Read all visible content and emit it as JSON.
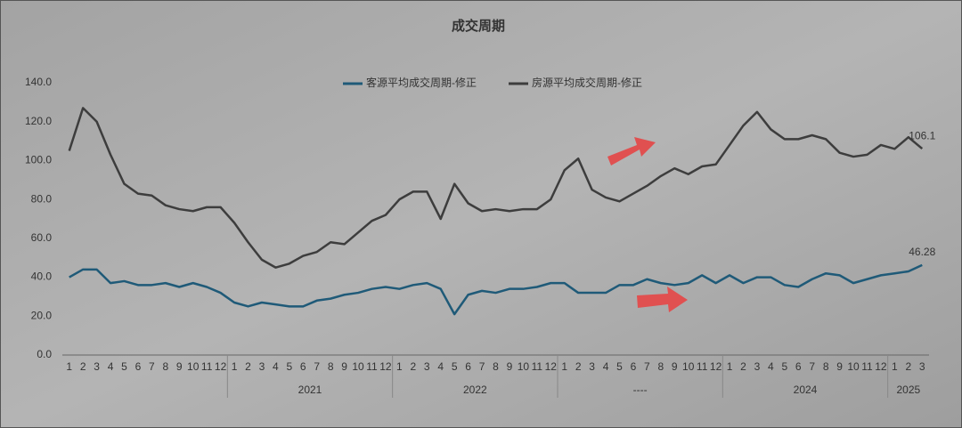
{
  "chart_data": {
    "type": "line",
    "title": "成交周期",
    "categories": [
      "1",
      "2",
      "3",
      "4",
      "5",
      "6",
      "7",
      "8",
      "9",
      "10",
      "11",
      "12",
      "1",
      "2",
      "3",
      "4",
      "5",
      "6",
      "7",
      "8",
      "9",
      "10",
      "11",
      "12",
      "1",
      "2",
      "3",
      "4",
      "5",
      "6",
      "7",
      "8",
      "9",
      "10",
      "11",
      "12",
      "1",
      "2",
      "3",
      "4",
      "5",
      "6",
      "7",
      "8",
      "9",
      "10",
      "11",
      "12",
      "1",
      "2",
      "3",
      "4",
      "5",
      "6",
      "7",
      "8",
      "9",
      "10",
      "11",
      "12",
      "1",
      "2",
      "3"
    ],
    "category_groups": [
      null,
      "2021",
      "2022",
      "----",
      "2024",
      "2025"
    ],
    "series": [
      {
        "name": "客源平均成交周期-修正",
        "color": "#1f5a78",
        "values": [
          40,
          44,
          44,
          37,
          38,
          36,
          36,
          37,
          35,
          37,
          35,
          32,
          27,
          25,
          27,
          26,
          25,
          25,
          28,
          29,
          31,
          32,
          34,
          35,
          34,
          36,
          37,
          34,
          21,
          31,
          33,
          32,
          34,
          34,
          35,
          37,
          37,
          32,
          32,
          32,
          36,
          36,
          39,
          37,
          36,
          37,
          41,
          37,
          41,
          37,
          40,
          40,
          36,
          35,
          39,
          42,
          41,
          37,
          39,
          41,
          42,
          43,
          46.28
        ],
        "value_labels": [
          null,
          null,
          null,
          null,
          null,
          null,
          null,
          null,
          null,
          null,
          null,
          null,
          null,
          null,
          null,
          null,
          null,
          null,
          null,
          null,
          null,
          null,
          null,
          null,
          null,
          null,
          null,
          null,
          null,
          null,
          null,
          null,
          null,
          null,
          null,
          null,
          null,
          null,
          null,
          null,
          null,
          null,
          null,
          null,
          null,
          null,
          null,
          null,
          null,
          null,
          null,
          null,
          null,
          null,
          null,
          null,
          null,
          null,
          null,
          null,
          null,
          null,
          "46.28"
        ]
      },
      {
        "name": "房源平均成交周期-修正",
        "color": "#3d3d3d",
        "values": [
          105,
          127,
          120,
          103,
          88,
          83,
          82,
          77,
          75,
          74,
          76,
          76,
          68,
          58,
          49,
          45,
          47,
          51,
          53,
          58,
          57,
          63,
          69,
          72,
          80,
          84,
          84,
          70,
          88,
          78,
          74,
          75,
          74,
          75,
          75,
          80,
          95,
          101,
          85,
          81,
          79,
          83,
          87,
          92,
          96,
          93,
          97,
          98,
          108,
          118,
          125,
          116,
          111,
          111,
          113,
          111,
          104,
          102,
          103,
          108,
          106,
          112,
          106.1
        ],
        "value_labels": [
          null,
          null,
          null,
          null,
          null,
          null,
          null,
          null,
          null,
          null,
          null,
          null,
          null,
          null,
          null,
          null,
          null,
          null,
          null,
          null,
          null,
          null,
          null,
          null,
          null,
          null,
          null,
          null,
          null,
          null,
          null,
          null,
          null,
          null,
          null,
          null,
          null,
          null,
          null,
          null,
          null,
          null,
          null,
          null,
          null,
          null,
          null,
          null,
          null,
          null,
          null,
          null,
          null,
          null,
          null,
          null,
          null,
          null,
          null,
          null,
          null,
          null,
          "106.1"
        ]
      }
    ],
    "ylim": [
      0,
      140
    ],
    "yticks": [
      {
        "value": 0,
        "label": "0.0"
      },
      {
        "value": 20,
        "label": "20.0"
      },
      {
        "value": 40,
        "label": "40.0"
      },
      {
        "value": 60,
        "label": "60.0"
      },
      {
        "value": 80,
        "label": "80.0"
      },
      {
        "value": 100,
        "label": "100.0"
      },
      {
        "value": 120,
        "label": "120.0"
      },
      {
        "value": 140,
        "label": "140.0"
      }
    ],
    "legend": "top"
  }
}
